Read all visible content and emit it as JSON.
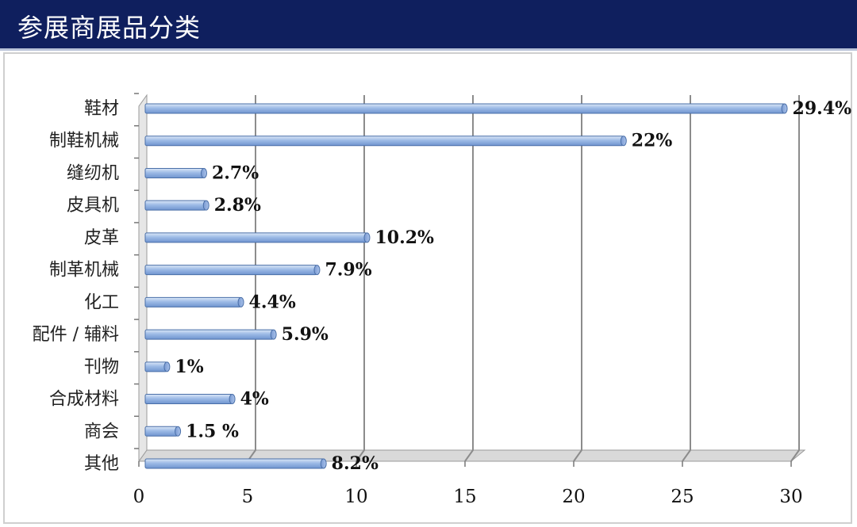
{
  "header": {
    "title": "参展商展品分类"
  },
  "chart_data": {
    "type": "bar",
    "orientation": "horizontal",
    "title": "参展商展品分类",
    "categories": [
      "鞋材",
      "制鞋机械",
      "缝纫机",
      "皮具机",
      "皮革",
      "制革机械",
      "化工",
      "配件 / 辅料",
      "刊物",
      "合成材料",
      "商会",
      "其他"
    ],
    "values": [
      29.4,
      22,
      2.7,
      2.8,
      10.2,
      7.9,
      4.4,
      5.9,
      1,
      4,
      1.5,
      8.2
    ],
    "data_labels": [
      "29.4%",
      "22%",
      "2.7%",
      "2.8%",
      "10.2%",
      "7.9%",
      "4.4%",
      "5.9%",
      "1%",
      "4%",
      "1.5 %",
      "8.2%"
    ],
    "xlim": [
      0,
      30
    ],
    "xticks": [
      "0",
      "5",
      "10",
      "15",
      "20",
      "25",
      "30"
    ],
    "xlabel": "",
    "ylabel": "",
    "grid": true,
    "legend": "none",
    "bar_color": "#8fb0e0",
    "bar_edge_color": "#4a6fa8"
  }
}
